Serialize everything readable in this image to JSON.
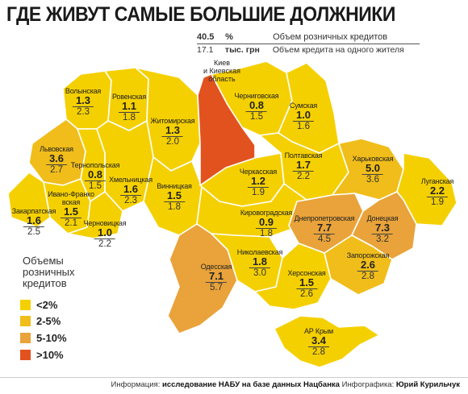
{
  "title": "ГДЕ ЖИВУТ САМЫЕ БОЛЬШИЕ ДОЛЖНИКИ",
  "header": {
    "row1": {
      "value": "40.5",
      "unit": "%",
      "desc": "Объем розничных кредитов"
    },
    "row2": {
      "value": "17.1",
      "unit": "тыс. грн",
      "desc": "Объем кредита на одного жителя"
    }
  },
  "kiev_label": {
    "line1": "Киев",
    "line2": "и Киевская область"
  },
  "regions": [
    {
      "name": "Волынская",
      "pct": "1.3",
      "amount": "2.3"
    },
    {
      "name": "Ровенская",
      "pct": "1.1",
      "amount": "1.8"
    },
    {
      "name": "Житомирская",
      "pct": "1.3",
      "amount": "2.0"
    },
    {
      "name": "Черниговская",
      "pct": "0.8",
      "amount": "1.5"
    },
    {
      "name": "Сумская",
      "pct": "1.0",
      "amount": "1.6"
    },
    {
      "name": "Львовская",
      "pct": "3.6",
      "amount": "2.7"
    },
    {
      "name": "Тернопольская",
      "pct": "0.8",
      "amount": "1.5"
    },
    {
      "name": "Хмельницкая",
      "pct": "1.6",
      "amount": "2.3"
    },
    {
      "name": "Винницкая",
      "pct": "1.5",
      "amount": "1.8"
    },
    {
      "name": "Черкасская",
      "pct": "1.2",
      "amount": "1.9"
    },
    {
      "name": "Полтавская",
      "pct": "1.7",
      "amount": "2.2"
    },
    {
      "name": "Харьковская",
      "pct": "5.0",
      "amount": "3.6"
    },
    {
      "name": "Луганская",
      "pct": "2.2",
      "amount": "1.9"
    },
    {
      "name": "Ивано-Франковская",
      "pct": "1.5",
      "amount": "2.1"
    },
    {
      "name": "Закарпатская",
      "pct": "1.6",
      "amount": "2.5"
    },
    {
      "name": "Черновицкая",
      "pct": "1.0",
      "amount": "2.2"
    },
    {
      "name": "Кировоградская",
      "pct": "0.9",
      "amount": "1.8"
    },
    {
      "name": "Днепропетровская",
      "pct": "7.7",
      "amount": "4.5"
    },
    {
      "name": "Донецкая",
      "pct": "7.3",
      "amount": "3.2"
    },
    {
      "name": "Одесская",
      "pct": "7.1",
      "amount": "5.7"
    },
    {
      "name": "Николаевская",
      "pct": "1.8",
      "amount": "3.0"
    },
    {
      "name": "Херсонская",
      "pct": "1.5",
      "amount": "2.6"
    },
    {
      "name": "Запорожская",
      "pct": "2.6",
      "amount": "2.8"
    },
    {
      "name": "АР Крым",
      "pct": "3.4",
      "amount": "2.8"
    }
  ],
  "legend": {
    "title_line1": "Объемы",
    "title_line2": "розничных",
    "title_line3": "кредитов",
    "items": [
      {
        "label": "<2%",
        "color": "#f5d000"
      },
      {
        "label": "2-5%",
        "color": "#f0bd1a"
      },
      {
        "label": "5-10%",
        "color": "#e9a33a"
      },
      {
        "label": ">10%",
        "color": "#e2521e"
      }
    ]
  },
  "footer": {
    "info_label": "Информация:",
    "info_value": "исследование НАБУ на базе данных Нацбанка",
    "author_label": "Инфографика:",
    "author_value": "Юрий Курильчук"
  }
}
